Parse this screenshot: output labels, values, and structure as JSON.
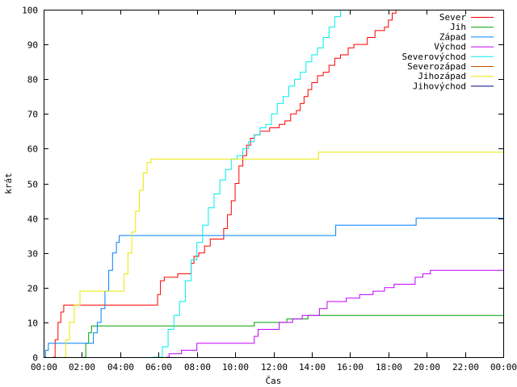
{
  "chart_data": {
    "type": "line",
    "title": "",
    "xlabel": "Čas",
    "ylabel": "krát",
    "xlim": [
      0,
      24
    ],
    "ylim": [
      0,
      100
    ],
    "grid": false,
    "legend_position": "top-right",
    "x_ticks": [
      0,
      2,
      4,
      6,
      8,
      10,
      12,
      14,
      16,
      18,
      20,
      22,
      24
    ],
    "x_tick_labels": [
      "00:00",
      "02:00",
      "04:00",
      "06:00",
      "08:00",
      "10:00",
      "12:00",
      "14:00",
      "16:00",
      "18:00",
      "20:00",
      "22:00",
      "00:00"
    ],
    "y_ticks": [
      0,
      10,
      20,
      30,
      40,
      50,
      60,
      70,
      80,
      90,
      100
    ],
    "y_tick_labels": [
      "0",
      "10",
      "20",
      "30",
      "40",
      "50",
      "60",
      "70",
      "80",
      "90",
      "100"
    ],
    "series": [
      {
        "name": "Sever",
        "color": "#ff0000",
        "points": [
          [
            0.5,
            0
          ],
          [
            0.6,
            5
          ],
          [
            0.75,
            10
          ],
          [
            0.9,
            13
          ],
          [
            1.05,
            15
          ],
          [
            5.8,
            15
          ],
          [
            5.95,
            18
          ],
          [
            6.1,
            22
          ],
          [
            6.3,
            23
          ],
          [
            6.9,
            23
          ],
          [
            7.0,
            24
          ],
          [
            7.6,
            24
          ],
          [
            7.7,
            27
          ],
          [
            7.85,
            29
          ],
          [
            8.1,
            30
          ],
          [
            8.4,
            32
          ],
          [
            8.7,
            34
          ],
          [
            9.2,
            34
          ],
          [
            9.4,
            37
          ],
          [
            9.6,
            41
          ],
          [
            9.8,
            45
          ],
          [
            10.0,
            50
          ],
          [
            10.2,
            55
          ],
          [
            10.4,
            58
          ],
          [
            10.6,
            61
          ],
          [
            10.8,
            63
          ],
          [
            11.0,
            64
          ],
          [
            11.3,
            65
          ],
          [
            11.7,
            65
          ],
          [
            11.8,
            66
          ],
          [
            12.1,
            66
          ],
          [
            12.3,
            67
          ],
          [
            12.6,
            68
          ],
          [
            12.9,
            70
          ],
          [
            13.2,
            71
          ],
          [
            13.4,
            73
          ],
          [
            13.6,
            75
          ],
          [
            13.8,
            77
          ],
          [
            14.0,
            79
          ],
          [
            14.3,
            81
          ],
          [
            14.6,
            82
          ],
          [
            14.9,
            84
          ],
          [
            15.2,
            86
          ],
          [
            15.5,
            87
          ],
          [
            15.9,
            89
          ],
          [
            16.2,
            90
          ],
          [
            16.7,
            90
          ],
          [
            16.9,
            92
          ],
          [
            17.3,
            94
          ],
          [
            17.8,
            95
          ],
          [
            18.0,
            97
          ],
          [
            18.2,
            99
          ],
          [
            18.4,
            100
          ]
        ]
      },
      {
        "name": "Jih",
        "color": "#00a000",
        "points": [
          [
            2.1,
            0
          ],
          [
            2.2,
            4
          ],
          [
            2.35,
            7
          ],
          [
            2.5,
            9
          ],
          [
            10.9,
            9
          ],
          [
            11.0,
            10
          ],
          [
            12.6,
            10
          ],
          [
            12.7,
            11
          ],
          [
            13.7,
            11
          ],
          [
            13.8,
            12
          ],
          [
            24,
            12
          ]
        ]
      },
      {
        "name": "Západ",
        "color": "#0080ff",
        "points": [
          [
            0,
            0
          ],
          [
            0.1,
            2
          ],
          [
            0.25,
            4
          ],
          [
            2.4,
            4
          ],
          [
            2.6,
            7
          ],
          [
            2.8,
            10
          ],
          [
            3.0,
            14
          ],
          [
            3.2,
            19
          ],
          [
            3.4,
            25
          ],
          [
            3.6,
            30
          ],
          [
            3.8,
            33
          ],
          [
            3.95,
            35
          ],
          [
            15.1,
            35
          ],
          [
            15.25,
            38
          ],
          [
            19.3,
            38
          ],
          [
            19.45,
            40
          ],
          [
            24,
            40
          ]
        ]
      },
      {
        "name": "Východ",
        "color": "#c000ff",
        "points": [
          [
            6.4,
            0
          ],
          [
            6.55,
            1
          ],
          [
            7.0,
            1
          ],
          [
            7.2,
            2
          ],
          [
            7.8,
            2
          ],
          [
            8.0,
            4
          ],
          [
            10.9,
            4
          ],
          [
            11.0,
            6
          ],
          [
            11.2,
            8
          ],
          [
            12.1,
            8
          ],
          [
            12.3,
            10
          ],
          [
            13.0,
            11
          ],
          [
            13.5,
            12
          ],
          [
            14.2,
            12
          ],
          [
            14.4,
            14
          ],
          [
            14.8,
            16
          ],
          [
            15.6,
            16
          ],
          [
            15.8,
            17
          ],
          [
            16.5,
            18
          ],
          [
            17.2,
            19
          ],
          [
            17.8,
            20
          ],
          [
            18.3,
            21
          ],
          [
            19.2,
            21
          ],
          [
            19.4,
            23
          ],
          [
            19.8,
            24
          ],
          [
            20.2,
            25
          ],
          [
            24,
            25
          ]
        ]
      },
      {
        "name": "Severovýchod",
        "color": "#00eeee",
        "points": [
          [
            5.7,
            0
          ],
          [
            6.0,
            0
          ],
          [
            6.2,
            3
          ],
          [
            6.5,
            8
          ],
          [
            6.8,
            12
          ],
          [
            7.1,
            16
          ],
          [
            7.4,
            22
          ],
          [
            7.7,
            28
          ],
          [
            8.0,
            33
          ],
          [
            8.3,
            38
          ],
          [
            8.6,
            43
          ],
          [
            8.9,
            47
          ],
          [
            9.2,
            51
          ],
          [
            9.5,
            54
          ],
          [
            9.8,
            57
          ],
          [
            10.1,
            58
          ],
          [
            10.4,
            60
          ],
          [
            10.7,
            62
          ],
          [
            11.0,
            64
          ],
          [
            11.3,
            66
          ],
          [
            11.6,
            67
          ],
          [
            11.9,
            70
          ],
          [
            12.2,
            73
          ],
          [
            12.5,
            75
          ],
          [
            12.8,
            78
          ],
          [
            13.1,
            80
          ],
          [
            13.4,
            82
          ],
          [
            13.7,
            85
          ],
          [
            14.0,
            87
          ],
          [
            14.3,
            89
          ],
          [
            14.6,
            92
          ],
          [
            14.9,
            95
          ],
          [
            15.2,
            98
          ],
          [
            15.5,
            100
          ]
        ]
      },
      {
        "name": "Severozápad",
        "color": "#c05000",
        "points": []
      },
      {
        "name": "Jihozápad",
        "color": "#e8e800",
        "points": [
          [
            1.0,
            0
          ],
          [
            1.15,
            5
          ],
          [
            1.35,
            10
          ],
          [
            1.6,
            15
          ],
          [
            1.9,
            19
          ],
          [
            4.0,
            19
          ],
          [
            4.2,
            24
          ],
          [
            4.4,
            30
          ],
          [
            4.6,
            36
          ],
          [
            4.8,
            42
          ],
          [
            5.0,
            48
          ],
          [
            5.2,
            53
          ],
          [
            5.4,
            56
          ],
          [
            5.6,
            57
          ],
          [
            14.2,
            57
          ],
          [
            14.35,
            59
          ],
          [
            24,
            59
          ]
        ]
      },
      {
        "name": "Jihovýchod",
        "color": "#000080",
        "points": []
      }
    ]
  }
}
